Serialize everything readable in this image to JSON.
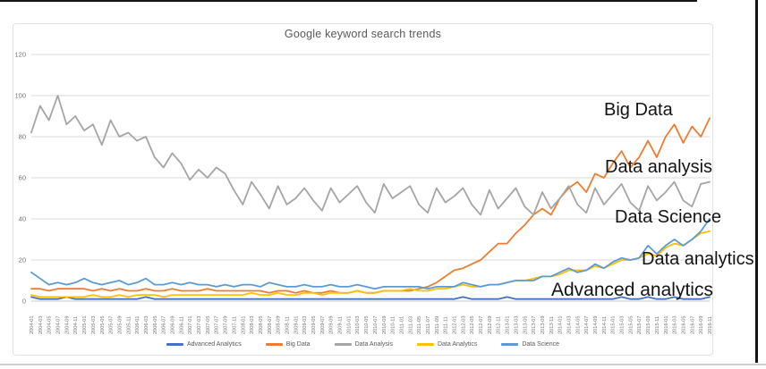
{
  "annotations": {
    "big_data": "Big Data",
    "data_analysis": "Data analysis",
    "data_science": "Data Science",
    "data_analytics": "Data analytics",
    "advanced_analytics": "Advanced analytics"
  },
  "chart_data": {
    "type": "line",
    "title": "Google keyword search trends",
    "xlabel": "",
    "ylabel": "",
    "ylim": [
      0,
      120
    ],
    "yticks": [
      0,
      20,
      40,
      60,
      80,
      100,
      120
    ],
    "grid": true,
    "legend_position": "bottom",
    "x_labels": [
      "2004-01",
      "2004-03",
      "2004-05",
      "2004-07",
      "2004-09",
      "2004-11",
      "2005-01",
      "2005-03",
      "2005-05",
      "2005-07",
      "2005-09",
      "2005-11",
      "2006-01",
      "2006-03",
      "2006-05",
      "2006-07",
      "2006-09",
      "2006-11",
      "2007-01",
      "2007-03",
      "2007-05",
      "2007-07",
      "2007-09",
      "2007-11",
      "2008-01",
      "2008-03",
      "2008-05",
      "2008-07",
      "2008-09",
      "2008-11",
      "2009-01",
      "2009-03",
      "2009-05",
      "2009-07",
      "2009-09",
      "2009-11",
      "2010-01",
      "2010-03",
      "2010-05",
      "2010-07",
      "2010-09",
      "2010-11",
      "2011-01",
      "2011-03",
      "2011-05",
      "2011-07",
      "2011-09",
      "2011-11",
      "2012-01",
      "2012-03",
      "2012-05",
      "2012-07",
      "2012-09",
      "2012-11",
      "2013-01",
      "2013-03",
      "2013-05",
      "2013-07",
      "2013-09",
      "2013-11",
      "2014-01",
      "2014-03",
      "2014-05",
      "2014-07",
      "2014-09",
      "2014-11",
      "2015-01",
      "2015-03",
      "2015-05",
      "2015-07",
      "2015-09",
      "2015-11",
      "2016-01",
      "2016-03",
      "2016-05",
      "2016-07",
      "2016-09",
      "2016-11"
    ],
    "series": [
      {
        "name": "Advanced Analytics",
        "color": "#4472c4",
        "values": [
          2,
          1,
          1,
          1,
          2,
          1,
          1,
          1,
          1,
          1,
          1,
          1,
          1,
          2,
          1,
          1,
          1,
          1,
          1,
          1,
          1,
          1,
          1,
          1,
          1,
          1,
          1,
          1,
          1,
          1,
          1,
          1,
          1,
          1,
          1,
          1,
          1,
          1,
          1,
          1,
          1,
          1,
          1,
          1,
          1,
          1,
          1,
          1,
          1,
          2,
          1,
          1,
          1,
          1,
          2,
          1,
          1,
          1,
          1,
          1,
          1,
          1,
          1,
          1,
          1,
          1,
          1,
          2,
          1,
          1,
          2,
          1,
          1,
          2,
          1,
          1,
          1,
          2
        ]
      },
      {
        "name": "Big Data",
        "color": "#ed7d31",
        "values": [
          6,
          6,
          5,
          6,
          6,
          6,
          6,
          5,
          6,
          5,
          6,
          5,
          5,
          6,
          5,
          5,
          6,
          5,
          5,
          5,
          6,
          5,
          5,
          5,
          5,
          5,
          5,
          4,
          5,
          5,
          4,
          5,
          4,
          4,
          5,
          4,
          4,
          5,
          4,
          4,
          5,
          5,
          5,
          5,
          6,
          7,
          9,
          12,
          15,
          16,
          18,
          20,
          24,
          28,
          28,
          33,
          37,
          42,
          45,
          42,
          50,
          55,
          58,
          53,
          62,
          60,
          67,
          73,
          65,
          70,
          78,
          70,
          80,
          86,
          77,
          85,
          80,
          89
        ]
      },
      {
        "name": "Data Analysis",
        "color": "#a5a5a5",
        "values": [
          82,
          95,
          88,
          100,
          86,
          90,
          83,
          86,
          76,
          88,
          80,
          82,
          78,
          80,
          70,
          65,
          72,
          67,
          59,
          64,
          60,
          65,
          62,
          54,
          47,
          58,
          52,
          45,
          56,
          47,
          50,
          55,
          49,
          44,
          55,
          48,
          52,
          56,
          48,
          43,
          57,
          50,
          53,
          56,
          47,
          43,
          55,
          48,
          51,
          55,
          47,
          42,
          54,
          45,
          50,
          55,
          46,
          42,
          53,
          45,
          50,
          56,
          47,
          43,
          55,
          47,
          52,
          57,
          48,
          44,
          56,
          49,
          53,
          58,
          49,
          46,
          57,
          58
        ]
      },
      {
        "name": "Data Analytics",
        "color": "#ffc000",
        "values": [
          3,
          2,
          2,
          2,
          2,
          2,
          2,
          3,
          2,
          2,
          3,
          2,
          3,
          3,
          3,
          2,
          3,
          3,
          3,
          3,
          3,
          3,
          3,
          3,
          3,
          4,
          3,
          3,
          4,
          3,
          3,
          4,
          4,
          3,
          4,
          4,
          4,
          5,
          4,
          4,
          5,
          5,
          5,
          6,
          5,
          5,
          6,
          6,
          7,
          8,
          7,
          7,
          8,
          8,
          9,
          10,
          10,
          11,
          12,
          12,
          13,
          15,
          15,
          15,
          17,
          16,
          18,
          20,
          20,
          21,
          23,
          22,
          26,
          28,
          27,
          30,
          33,
          34
        ]
      },
      {
        "name": "Data Science",
        "color": "#5b9bd5",
        "values": [
          14,
          11,
          8,
          9,
          8,
          9,
          11,
          9,
          8,
          9,
          10,
          8,
          9,
          11,
          8,
          8,
          9,
          8,
          9,
          8,
          8,
          7,
          8,
          7,
          8,
          8,
          7,
          9,
          8,
          7,
          7,
          8,
          7,
          7,
          8,
          7,
          7,
          8,
          7,
          6,
          7,
          7,
          7,
          7,
          7,
          6,
          7,
          7,
          7,
          9,
          8,
          7,
          8,
          8,
          9,
          10,
          10,
          10,
          12,
          12,
          14,
          16,
          14,
          15,
          18,
          16,
          19,
          21,
          20,
          21,
          27,
          23,
          27,
          30,
          27,
          30,
          34,
          40
        ]
      }
    ]
  }
}
